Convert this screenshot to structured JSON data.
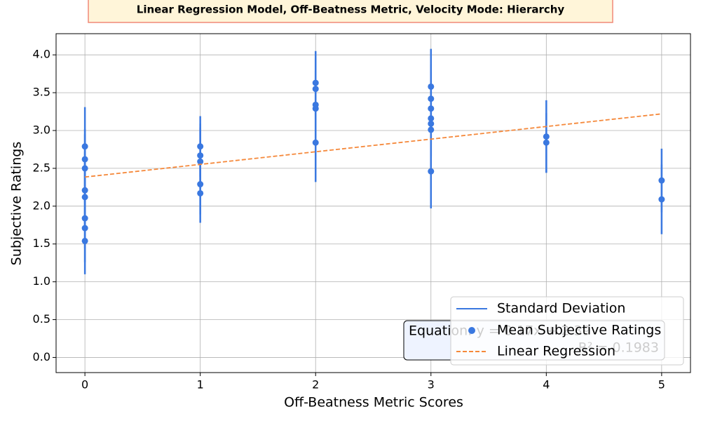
{
  "chart_data": {
    "type": "errorbar",
    "title": "Linear Regression Model, Off-Beatness Metric, Velocity Mode: Hierarchy",
    "xlabel": "Off-Beatness Metric Scores",
    "ylabel": "Subjective Ratings",
    "xlim": [
      -0.25,
      5.25
    ],
    "ylim": [
      -0.2,
      4.28
    ],
    "xticks": [
      0,
      1,
      2,
      3,
      4,
      5
    ],
    "yticks": [
      {
        "value": 0,
        "label": "0.0"
      },
      0.5,
      {
        "value": 1,
        "label": "1.0"
      },
      1.5,
      {
        "value": 2,
        "label": "2.0"
      },
      2.5,
      {
        "value": 3,
        "label": "3.0"
      },
      3.5,
      {
        "value": 4,
        "label": "4.0"
      }
    ],
    "grid": true,
    "legend": "lower right",
    "series": [
      {
        "name": "Mean Subjective Ratings",
        "error_name": "Standard Deviation",
        "color": "#3a78e0",
        "x": [
          0,
          0,
          0,
          0,
          0,
          0,
          0,
          0,
          1,
          1,
          1,
          1,
          1,
          2,
          2,
          2,
          2,
          2,
          3,
          3,
          3,
          3,
          3,
          3,
          3,
          4,
          4,
          5,
          5
        ],
        "values": [
          2.79,
          2.62,
          2.5,
          2.21,
          2.12,
          1.84,
          1.71,
          1.54,
          2.79,
          2.67,
          2.59,
          2.29,
          2.17,
          3.63,
          3.55,
          3.34,
          3.29,
          2.84,
          3.58,
          3.42,
          3.29,
          3.16,
          3.09,
          3.01,
          2.46,
          2.92,
          2.84,
          2.34,
          2.09
        ],
        "errors": [
          0.52,
          0.4,
          0.45,
          0.5,
          0.45,
          0.4,
          0.45,
          0.44,
          0.4,
          0.42,
          0.45,
          0.4,
          0.39,
          0.42,
          0.4,
          0.45,
          0.5,
          0.52,
          0.5,
          0.45,
          0.48,
          0.5,
          0.45,
          0.5,
          0.49,
          0.48,
          0.39,
          0.42,
          0.46
        ]
      }
    ],
    "regression": {
      "name": "Linear Regression",
      "color": "#f5883a",
      "x": [
        0,
        5
      ],
      "values": [
        2.385,
        3.22
      ]
    },
    "annotation": [
      "Equation: y = 0.17x + 2.39",
      "R² = 0.1983"
    ]
  }
}
